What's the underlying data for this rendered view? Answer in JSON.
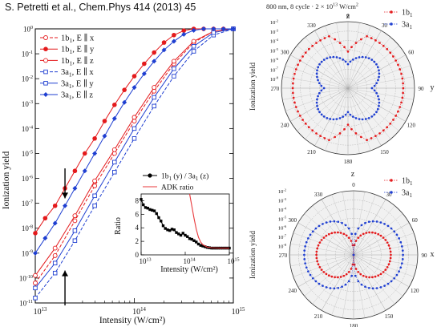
{
  "citation": "S. Petretti et al., Chem.Phys  414 (2013) 45",
  "polar_header_prefix": "800 nm, 8 cycle · 2 × 10",
  "polar_header_exp": "13",
  "polar_header_suffix": " W/cm",
  "polar_header_sup2": "2",
  "chart_data": [
    {
      "type": "line",
      "xlabel": "Intensity (W/cm²)",
      "ylabel": "Ionization yield",
      "xscale": "log",
      "yscale": "log",
      "xlim": [
        10000000000000.0,
        1000000000000000.0
      ],
      "ylim": [
        1e-11,
        1
      ],
      "x_tick_labels": [
        {
          "base": "10",
          "exp": "13"
        },
        {
          "base": "10",
          "exp": "14"
        },
        {
          "base": "10",
          "exp": "15"
        }
      ],
      "y_tick_labels": [
        {
          "base": "10",
          "exp": "-11",
          "v": -11
        },
        {
          "base": "10",
          "exp": "-10",
          "v": -10
        },
        {
          "base": "10",
          "exp": "-9",
          "v": -9
        },
        {
          "base": "10",
          "exp": "-8",
          "v": -8
        },
        {
          "base": "10",
          "exp": "-7",
          "v": -7
        },
        {
          "base": "10",
          "exp": "-6",
          "v": -6
        },
        {
          "base": "10",
          "exp": "-5",
          "v": -5
        },
        {
          "base": "10",
          "exp": "-4",
          "v": -4
        },
        {
          "base": "10",
          "exp": "-3",
          "v": -3
        },
        {
          "base": "10",
          "exp": "-2",
          "v": -2
        },
        {
          "base": "10",
          "exp": "-1",
          "v": -1
        },
        {
          "base": "10",
          "exp": "0",
          "v": 0
        }
      ],
      "legend_position": "top-left",
      "series": [
        {
          "name": "1b₁, E ∥ x",
          "label_main": "1b",
          "label_sub": "1",
          "label_rest": ", E ∥ x",
          "color": "#e41a1c",
          "marker": "open-circle",
          "dash": "4,2",
          "log_x": [
            13.0,
            13.2,
            13.4,
            13.6,
            13.8,
            14.0,
            14.2,
            14.4,
            14.6,
            14.8,
            15.0
          ],
          "log_y": [
            -10.2,
            -9.1,
            -7.7,
            -6.3,
            -5.0,
            -3.7,
            -2.5,
            -1.4,
            -0.55,
            -0.1,
            0.0
          ]
        },
        {
          "name": "1b₁, E ∥ y",
          "label_main": "1b",
          "label_sub": "1",
          "label_rest": ", E ∥ y",
          "color": "#e41a1c",
          "marker": "filled-circle",
          "dash": "",
          "log_x": [
            13.0,
            13.1,
            13.2,
            13.3,
            13.4,
            13.5,
            13.6,
            13.7,
            13.8,
            13.9,
            14.0,
            14.1,
            14.2,
            14.3,
            14.4,
            14.5,
            14.6,
            14.7,
            14.8,
            14.9,
            15.0
          ],
          "log_y": [
            -8.2,
            -7.6,
            -7.1,
            -6.4,
            -5.7,
            -5.0,
            -4.4,
            -3.7,
            -3.05,
            -2.45,
            -1.9,
            -1.4,
            -0.95,
            -0.55,
            -0.25,
            -0.07,
            0.0,
            0.0,
            0.0,
            0.0,
            0.0
          ]
        },
        {
          "name": "1b₁, E ∥ z",
          "label_main": "1b",
          "label_sub": "1",
          "label_rest": ", E ∥ z",
          "color": "#e41a1c",
          "marker": "open-circle",
          "dash": "",
          "log_x": [
            13.0,
            13.2,
            13.4,
            13.6,
            13.8,
            14.0,
            14.2,
            14.4,
            14.6,
            14.8,
            15.0
          ],
          "log_y": [
            -9.9,
            -8.8,
            -7.5,
            -6.1,
            -4.85,
            -3.55,
            -2.35,
            -1.3,
            -0.5,
            -0.1,
            0.0
          ]
        },
        {
          "name": "3a₁, E ∥ x",
          "label_main": "3a",
          "label_sub": "1",
          "label_rest": ", E ∥ x",
          "color": "#1f3fd1",
          "marker": "open-square",
          "dash": "4,2",
          "log_x": [
            13.0,
            13.2,
            13.4,
            13.6,
            13.8,
            14.0,
            14.2,
            14.4,
            14.6,
            14.8,
            15.0
          ],
          "log_y": [
            -10.8,
            -9.8,
            -8.5,
            -7.1,
            -5.75,
            -4.4,
            -3.1,
            -1.9,
            -0.9,
            -0.25,
            0.0
          ]
        },
        {
          "name": "3a₁, E ∥ y",
          "label_main": "3a",
          "label_sub": "1",
          "label_rest": ", E ∥ y",
          "color": "#1f3fd1",
          "marker": "open-square",
          "dash": "",
          "log_x": [
            13.0,
            13.2,
            13.4,
            13.6,
            13.8,
            14.0,
            14.2,
            14.4,
            14.6,
            14.8,
            15.0
          ],
          "log_y": [
            -10.4,
            -9.4,
            -8.1,
            -6.7,
            -5.35,
            -4.0,
            -2.75,
            -1.6,
            -0.7,
            -0.15,
            0.0
          ]
        },
        {
          "name": "3a₁, E ∥ z",
          "label_main": "3a",
          "label_sub": "1",
          "label_rest": ", E ∥ z",
          "color": "#1f3fd1",
          "marker": "filled-diamond",
          "dash": "",
          "log_x": [
            13.0,
            13.1,
            13.2,
            13.3,
            13.4,
            13.5,
            13.6,
            13.7,
            13.8,
            13.9,
            14.0,
            14.1,
            14.2,
            14.3,
            14.4,
            14.5,
            14.6,
            14.7,
            14.8,
            14.9,
            15.0
          ],
          "log_y": [
            -9.0,
            -8.4,
            -7.8,
            -7.1,
            -6.4,
            -5.7,
            -5.0,
            -4.3,
            -3.6,
            -2.95,
            -2.35,
            -1.8,
            -1.3,
            -0.85,
            -0.5,
            -0.22,
            -0.06,
            0.0,
            0.0,
            0.0,
            0.0
          ]
        }
      ],
      "arrows": [
        {
          "log_x": 13.3,
          "from_log_y": -5.6,
          "to_log_y": -6.8,
          "direction": "down"
        },
        {
          "log_x": 13.3,
          "from_log_y": -11.1,
          "to_log_y": -9.7,
          "direction": "up"
        }
      ]
    },
    {
      "type": "line",
      "xlabel": "Intensity (W/cm²)",
      "ylabel": "Ratio",
      "xscale": "log",
      "xlim": [
        10000000000000.0,
        1000000000000000.0
      ],
      "ylim": [
        0,
        9
      ],
      "y_tick_labels": [
        "0",
        "2",
        "4",
        "6",
        "8"
      ],
      "x_tick_labels": [
        {
          "base": "10",
          "exp": "13"
        },
        {
          "base": "10",
          "exp": "14"
        },
        {
          "base": "10",
          "exp": "15"
        }
      ],
      "legend_position": "top-right",
      "series": [
        {
          "name": "1b₁ (y) / 3a₁ (z)",
          "label_a": "1b",
          "label_a_sub": "1",
          "label_b": " (y) / 3a",
          "label_b_sub": "1",
          "label_c": " (z)",
          "color": "#000000",
          "marker": "filled-square",
          "log_x": [
            13.0,
            13.05,
            13.1,
            13.15,
            13.2,
            13.25,
            13.3,
            13.35,
            13.4,
            13.45,
            13.5,
            13.55,
            13.6,
            13.65,
            13.7,
            13.75,
            13.8,
            13.85,
            13.9,
            13.95,
            14.0,
            14.05,
            14.1,
            14.15,
            14.2,
            14.25,
            14.3,
            14.35,
            14.4,
            14.45,
            14.5,
            14.55,
            14.6,
            14.65,
            14.7,
            14.75,
            14.8,
            14.85,
            14.9,
            14.95,
            15.0
          ],
          "values": [
            8.2,
            7.4,
            7.0,
            6.9,
            6.7,
            6.6,
            6.5,
            6.1,
            5.5,
            5.0,
            4.3,
            3.9,
            3.7,
            3.6,
            3.8,
            3.7,
            3.3,
            3.1,
            2.9,
            3.2,
            2.9,
            2.7,
            2.4,
            2.3,
            2.1,
            1.9,
            1.6,
            1.4,
            1.3,
            1.2,
            1.1,
            1.05,
            1.0,
            1.0,
            1.0,
            1.0,
            1.0,
            1.0,
            1.0,
            1.0,
            1.0
          ]
        },
        {
          "name": "ADK ratio",
          "color": "#e8383b",
          "marker": "none",
          "log_x": [
            14.1,
            14.15,
            14.2,
            14.25,
            14.3,
            14.35,
            14.4,
            14.5,
            14.6,
            14.7,
            14.8,
            14.9,
            15.0
          ],
          "values": [
            9.0,
            7.2,
            5.4,
            3.8,
            2.6,
            1.9,
            1.5,
            1.15,
            1.05,
            1.02,
            1.0,
            1.0,
            1.0
          ]
        }
      ]
    },
    {
      "type": "polar",
      "axis_label_top": "z",
      "axis_label_right": "y",
      "ylabel": "Ionization yield",
      "angle_labels": [
        "0",
        "30",
        "60",
        "90",
        "120",
        "150",
        "180",
        "210",
        "240",
        "270",
        "300",
        "330"
      ],
      "radial_labels": [
        {
          "base": "10",
          "exp": "-2"
        },
        {
          "base": "10",
          "exp": "-3"
        },
        {
          "base": "10",
          "exp": "-4"
        },
        {
          "base": "10",
          "exp": "-5"
        },
        {
          "base": "10",
          "exp": "-6"
        },
        {
          "base": "10",
          "exp": "-7"
        },
        {
          "base": "10",
          "exp": "-8"
        }
      ],
      "legend_position": "top-right",
      "series": [
        {
          "name": "1b₁",
          "label_main": "1b",
          "label_sub": "1",
          "color": "#e41a1c",
          "marker": "dot",
          "shape": "lobes-top-bottom"
        },
        {
          "name": "3a₁",
          "label_main": "3a",
          "label_sub": "1",
          "color": "#1f3fd1",
          "marker": "dot",
          "shape": "four-leaf"
        }
      ]
    },
    {
      "type": "polar",
      "axis_label_top": "z",
      "axis_label_right": "x",
      "ylabel": "Ionization yield",
      "angle_labels": [
        "0",
        "30",
        "60",
        "90",
        "120",
        "150",
        "180",
        "210",
        "240",
        "270",
        "300",
        "330"
      ],
      "radial_labels": [
        {
          "base": "10",
          "exp": "-2"
        },
        {
          "base": "10",
          "exp": "-3"
        },
        {
          "base": "10",
          "exp": "-4"
        },
        {
          "base": "10",
          "exp": "-5"
        },
        {
          "base": "10",
          "exp": "-6"
        },
        {
          "base": "10",
          "exp": "-7"
        },
        {
          "base": "10",
          "exp": "-8"
        }
      ],
      "legend_position": "top-right",
      "series": [
        {
          "name": "1b₁",
          "label_main": "1b",
          "label_sub": "1",
          "color": "#e41a1c",
          "marker": "dot",
          "shape": "side-lobes-small"
        },
        {
          "name": "3a₁",
          "label_main": "3a",
          "label_sub": "1",
          "color": "#1f3fd1",
          "marker": "dot",
          "shape": "side-lobes-large"
        }
      ]
    }
  ]
}
